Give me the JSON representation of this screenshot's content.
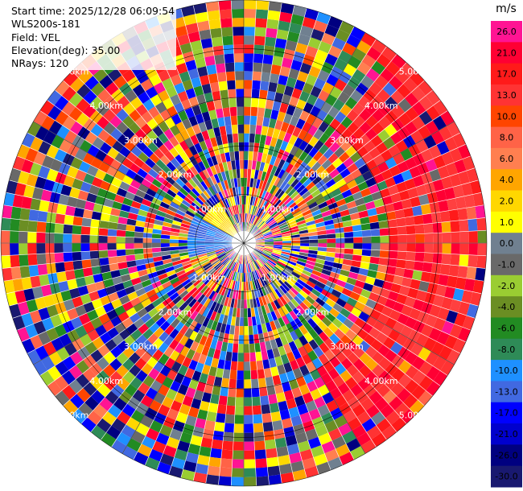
{
  "header": {
    "start_time_label": "Start time: 2025/12/28 06:09:54",
    "site_label": "WLS200s-181",
    "field_label": "Field: VEL",
    "elevation_label": "Elevation(deg): 35.00",
    "nrays_label": "NRays: 120"
  },
  "colorbar": {
    "unit": "m/s",
    "ticks": [
      "26.0",
      "21.0",
      "17.0",
      "13.0",
      "10.0",
      "8.0",
      "6.0",
      "4.0",
      "2.0",
      "1.0",
      "0.0",
      "-1.0",
      "-2.0",
      "-4.0",
      "-6.0",
      "-8.0",
      "-10.0",
      "-13.0",
      "-17.0",
      "-21.0",
      "-26.0",
      "-30.0"
    ],
    "colors": [
      "#ff1493",
      "#ff0033",
      "#ff1a1a",
      "#ff3333",
      "#ff4500",
      "#ff6347",
      "#ff7f50",
      "#ffa500",
      "#ffd700",
      "#ffff00",
      "#708090",
      "#696969",
      "#9acd32",
      "#6b8e23",
      "#228b22",
      "#2e8b57",
      "#1e90ff",
      "#4169e1",
      "#0000ff",
      "#0000cd",
      "#000080",
      "#191970"
    ]
  },
  "chart_data": {
    "type": "heatmap",
    "projection": "polar PPI",
    "field": "VEL",
    "units": "m/s",
    "n_rays": 120,
    "value_range": [
      -30,
      30
    ],
    "range_rings_km": [
      "1.00km",
      "2.00km",
      "3.00km",
      "4.00km",
      "5.00km"
    ],
    "grid": true
  }
}
